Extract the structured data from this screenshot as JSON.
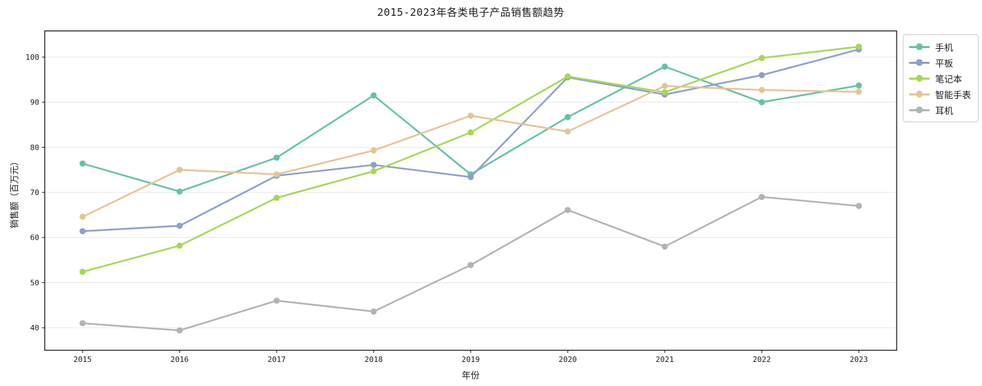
{
  "page": {
    "background": "#ffffff",
    "text_color": "#1a1a1a"
  },
  "chart_data": {
    "type": "line",
    "title": "2015-2023年各类电子产品销售额趋势",
    "xlabel": "年份",
    "ylabel": "销售额（百万元）",
    "x": [
      2015,
      2016,
      2017,
      2018,
      2019,
      2020,
      2021,
      2022,
      2023
    ],
    "y_ticks": [
      40,
      50,
      60,
      70,
      80,
      90,
      100
    ],
    "ylim": [
      35.0,
      105.8
    ],
    "grid": true,
    "grid_color": "#e6e6e6",
    "legend_position": "top-right-outside",
    "legend_border_color": "#cccccc",
    "series": [
      {
        "name": "手机",
        "color": "#66c2a5",
        "values": [
          76.4,
          70.2,
          77.7,
          91.5,
          74.0,
          86.7,
          97.9,
          90.0,
          93.7
        ]
      },
      {
        "name": "平板",
        "color": "#8da0cb",
        "values": [
          61.4,
          62.6,
          73.7,
          76.1,
          73.4,
          95.5,
          91.7,
          96.0,
          101.7
        ]
      },
      {
        "name": "笔记本",
        "color": "#a6d854",
        "values": [
          52.4,
          58.2,
          68.8,
          74.7,
          83.3,
          95.7,
          92.2,
          99.8,
          102.3
        ]
      },
      {
        "name": "智能手表",
        "color": "#e5c494",
        "values": [
          64.6,
          75.0,
          74.0,
          79.3,
          87.0,
          83.5,
          93.6,
          92.7,
          92.3
        ]
      },
      {
        "name": "耳机",
        "color": "#b3b3b3",
        "values": [
          41.0,
          39.4,
          46.0,
          43.6,
          53.9,
          66.1,
          58.0,
          69.0,
          67.0
        ]
      }
    ]
  }
}
